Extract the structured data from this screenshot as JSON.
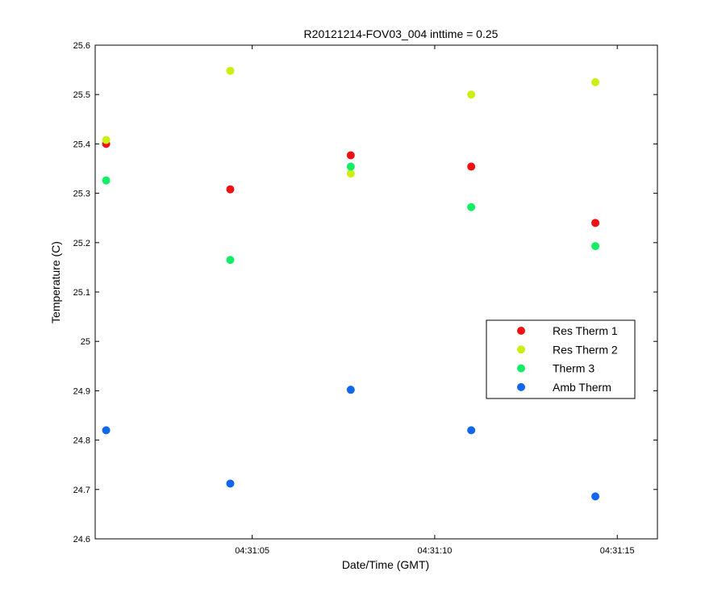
{
  "chart_data": {
    "type": "scatter",
    "title": "R20121214-FOV03_004 inttime = 0.25",
    "xlabel": "Date/Time (GMT)",
    "ylabel": "Temperature (C)",
    "x_axis_type": "time",
    "xlim": [
      "04:31:00.7",
      "04:31:16.1"
    ],
    "ylim": [
      24.6,
      25.6
    ],
    "x_ticks": [
      "04:31:05",
      "04:31:10",
      "04:31:15"
    ],
    "y_ticks": [
      "24.6",
      "24.7",
      "24.8",
      "24.9",
      "25",
      "25.1",
      "25.2",
      "25.3",
      "25.4",
      "25.5",
      "25.6"
    ],
    "grid": false,
    "legend_position": "right",
    "x": [
      "04:31:01.0",
      "04:31:04.4",
      "04:31:07.7",
      "04:31:11.0",
      "04:31:14.4"
    ],
    "series": [
      {
        "name": "Res Therm 1",
        "color": "#ee1111",
        "values": [
          25.4,
          25.308,
          25.377,
          25.354,
          25.24
        ]
      },
      {
        "name": "Res Therm 2",
        "color": "#ccee11",
        "values": [
          25.408,
          25.548,
          25.34,
          25.5,
          25.525
        ]
      },
      {
        "name": "Therm 3",
        "color": "#11ee66",
        "values": [
          25.326,
          25.165,
          25.354,
          25.272,
          25.193
        ]
      },
      {
        "name": "Amb Therm",
        "color": "#1166ee",
        "values": [
          24.82,
          24.712,
          24.902,
          24.82,
          24.686
        ]
      }
    ]
  }
}
